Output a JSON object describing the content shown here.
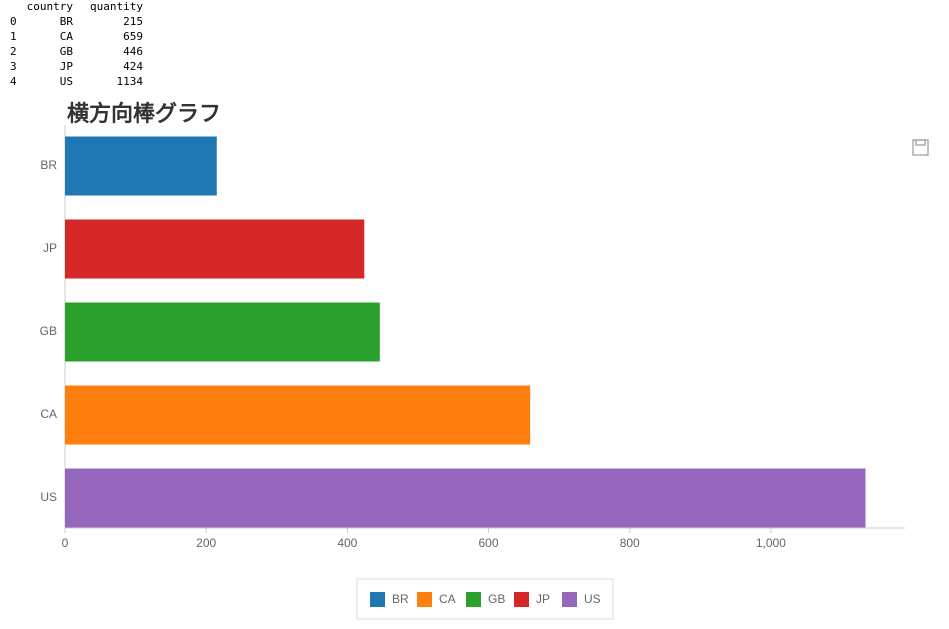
{
  "table": {
    "columns": [
      "country",
      "quantity"
    ],
    "rows": [
      [
        0,
        "BR",
        215
      ],
      [
        1,
        "CA",
        659
      ],
      [
        2,
        "GB",
        446
      ],
      [
        3,
        "JP",
        424
      ],
      [
        4,
        "US",
        1134
      ]
    ]
  },
  "chart_data": {
    "type": "bar",
    "orientation": "horizontal",
    "title": "横方向棒グラフ",
    "categories": [
      "BR",
      "JP",
      "GB",
      "CA",
      "US"
    ],
    "series": [
      {
        "name": "BR",
        "color": "#1f77b4",
        "values": [
          215,
          null,
          null,
          null,
          null
        ]
      },
      {
        "name": "CA",
        "color": "#ff7f0e",
        "values": [
          null,
          null,
          null,
          659,
          null
        ]
      },
      {
        "name": "GB",
        "color": "#2ca02c",
        "values": [
          null,
          null,
          446,
          null,
          null
        ]
      },
      {
        "name": "JP",
        "color": "#d62728",
        "values": [
          null,
          424,
          null,
          null,
          null
        ]
      },
      {
        "name": "US",
        "color": "#9467bd",
        "values": [
          null,
          null,
          null,
          null,
          1134
        ]
      }
    ],
    "xlim": [
      0,
      1190
    ],
    "xticks": [
      0,
      200,
      400,
      600,
      800,
      {
        "value": 1000,
        "label": "1,000"
      }
    ],
    "legend": "bottom"
  }
}
